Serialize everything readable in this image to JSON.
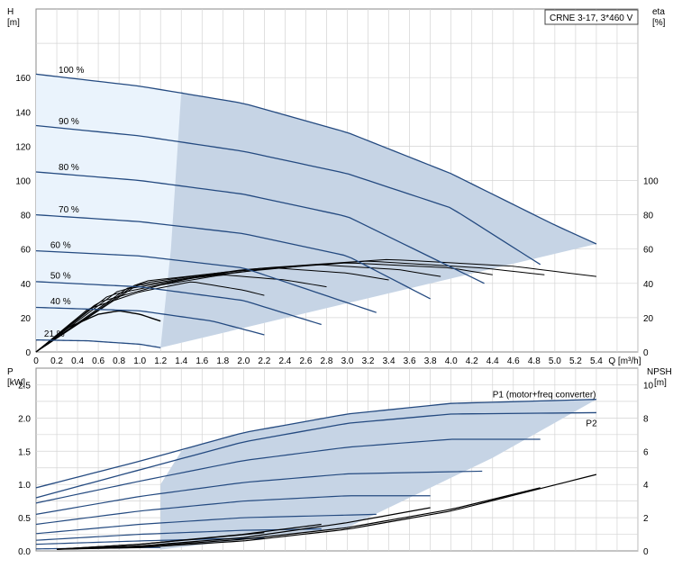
{
  "badge": "CRNE 3-17, 3*460 V",
  "colors": {
    "envelope": "#c6d4e5",
    "envelope_light": "#eaf3fc",
    "curve": "#244a80",
    "eff": "#000000",
    "grid": "#d4d4d4"
  },
  "chart_data": [
    {
      "id": "head",
      "type": "line",
      "ylabel_lines": [
        "H",
        "[m]"
      ],
      "y2label_lines": [
        "eta",
        "[%]"
      ],
      "xlabel": "Q [m³/h]",
      "xlim": [
        0,
        5.8
      ],
      "ylim": [
        0,
        200
      ],
      "y2lim": [
        0,
        200
      ],
      "xticks": [
        "0",
        "0.2",
        "0.4",
        "0.6",
        "0.8",
        "1.0",
        "1.2",
        "1.4",
        "1.6",
        "1.8",
        "2.0",
        "2.2",
        "2.4",
        "2.6",
        "2.8",
        "3.0",
        "3.2",
        "3.4",
        "3.6",
        "3.8",
        "4.0",
        "4.2",
        "4.4",
        "4.6",
        "4.8",
        "5.0",
        "5.2",
        "5.4"
      ],
      "yticks": [
        0,
        20,
        40,
        60,
        80,
        100,
        120,
        140,
        160
      ],
      "y2ticks": [
        0,
        20,
        40,
        60,
        80,
        100
      ],
      "grid": true,
      "speed_curves": [
        {
          "label": "100 %",
          "x": [
            0,
            1.0,
            2.0,
            3.0,
            4.0,
            5.0,
            5.4
          ],
          "y": [
            162,
            155,
            145,
            128,
            104,
            74,
            63
          ]
        },
        {
          "label": "90 %",
          "x": [
            0,
            1.0,
            2.0,
            3.0,
            4.0,
            4.86
          ],
          "y": [
            132,
            126,
            117,
            104,
            84,
            51
          ]
        },
        {
          "label": "80 %",
          "x": [
            0,
            1.0,
            2.0,
            3.0,
            4.32
          ],
          "y": [
            105,
            100,
            92,
            79,
            40
          ]
        },
        {
          "label": "70 %",
          "x": [
            0,
            1.0,
            2.0,
            3.0,
            3.8
          ],
          "y": [
            80,
            76,
            69,
            56,
            31
          ]
        },
        {
          "label": "60 %",
          "x": [
            0,
            1.0,
            2.0,
            3.28
          ],
          "y": [
            59,
            56,
            49,
            23
          ]
        },
        {
          "label": "50 %",
          "x": [
            0,
            1.0,
            2.0,
            2.75
          ],
          "y": [
            41,
            38,
            30,
            16
          ]
        },
        {
          "label": "40 %",
          "x": [
            0,
            1.0,
            1.7,
            2.2
          ],
          "y": [
            26,
            24,
            18,
            10
          ]
        },
        {
          "label": "21 %",
          "x": [
            0,
            0.5,
            1.0,
            1.2
          ],
          "y": [
            7,
            6.5,
            4.5,
            2.5
          ]
        }
      ],
      "efficiency_curves": [
        {
          "x": [
            0,
            0.3,
            0.6,
            0.8,
            1.0,
            1.2
          ],
          "y": [
            0,
            14,
            22,
            24,
            22,
            18
          ]
        },
        {
          "x": [
            0,
            0.5,
            1.0,
            1.5,
            2.0,
            2.2
          ],
          "y": [
            0,
            25,
            35,
            41,
            36,
            33
          ]
        },
        {
          "x": [
            0,
            0.6,
            1.2,
            1.8,
            2.4,
            2.8
          ],
          "y": [
            0,
            29,
            39,
            45,
            42,
            38
          ]
        },
        {
          "x": [
            0,
            0.7,
            1.5,
            2.3,
            3.0,
            3.4
          ],
          "y": [
            0,
            33,
            43,
            49,
            46,
            42
          ]
        },
        {
          "x": [
            0,
            0.8,
            1.7,
            2.7,
            3.5,
            3.9
          ],
          "y": [
            0,
            36,
            45,
            51,
            48,
            44
          ]
        },
        {
          "x": [
            0,
            0.9,
            1.9,
            3.0,
            4.0,
            4.4
          ],
          "y": [
            0,
            38,
            47,
            52,
            49,
            45
          ]
        },
        {
          "x": [
            0,
            1.0,
            2.0,
            3.2,
            4.3,
            4.9
          ],
          "y": [
            0,
            40,
            48,
            53,
            49,
            45
          ]
        },
        {
          "x": [
            0,
            1.0,
            2.2,
            3.4,
            4.6,
            5.4
          ],
          "y": [
            0,
            41,
            49,
            54,
            50,
            44
          ]
        }
      ]
    },
    {
      "id": "power",
      "type": "line",
      "ylabel_lines": [
        "P",
        "[kW]"
      ],
      "y2label_lines": [
        "NPSH",
        "[m]"
      ],
      "xlim": [
        0,
        5.8
      ],
      "ylim": [
        0,
        2.75
      ],
      "y2lim": [
        0,
        11
      ],
      "yticks": [
        "0.0",
        "0.5",
        "1.0",
        "1.5",
        "2.0",
        "2.5"
      ],
      "y2ticks": [
        0,
        2,
        4,
        6,
        8,
        10
      ],
      "grid": true,
      "series": [
        {
          "name": "P1 (motor+freq converter)",
          "x": [
            0,
            1.0,
            2.0,
            3.0,
            4.0,
            5.4
          ],
          "y": [
            0.95,
            1.35,
            1.78,
            2.06,
            2.22,
            2.28
          ]
        },
        {
          "name": "P2",
          "x": [
            0,
            1.0,
            2.0,
            3.0,
            4.0,
            5.4
          ],
          "y": [
            0.8,
            1.22,
            1.64,
            1.92,
            2.06,
            2.08
          ]
        }
      ],
      "power_curves": [
        {
          "x": [
            0,
            1.0,
            2.0,
            3.0,
            4.0,
            4.86
          ],
          "y": [
            0.72,
            1.05,
            1.36,
            1.56,
            1.68,
            1.68
          ]
        },
        {
          "x": [
            0,
            1.0,
            2.0,
            3.0,
            4.3
          ],
          "y": [
            0.55,
            0.82,
            1.03,
            1.16,
            1.2
          ]
        },
        {
          "x": [
            0,
            1.0,
            2.0,
            3.0,
            3.8
          ],
          "y": [
            0.4,
            0.6,
            0.75,
            0.83,
            0.83
          ]
        },
        {
          "x": [
            0,
            1.0,
            2.0,
            3.28
          ],
          "y": [
            0.26,
            0.4,
            0.5,
            0.55
          ]
        },
        {
          "x": [
            0,
            1.0,
            2.0,
            2.75
          ],
          "y": [
            0.16,
            0.25,
            0.31,
            0.33
          ]
        },
        {
          "x": [
            0,
            1.0,
            1.7,
            2.2
          ],
          "y": [
            0.1,
            0.15,
            0.18,
            0.19
          ]
        },
        {
          "x": [
            0,
            0.5,
            1.0,
            1.2
          ],
          "y": [
            0.03,
            0.04,
            0.05,
            0.05
          ]
        }
      ],
      "npsh_curves": [
        {
          "x": [
            0.2,
            1.0,
            2.0,
            3.0,
            4.0,
            4.86
          ],
          "y": [
            0.1,
            0.25,
            0.7,
            1.4,
            2.5,
            3.8
          ]
        },
        {
          "x": [
            0.2,
            1.0,
            2.0,
            3.0,
            4.0,
            5.4
          ],
          "y": [
            0.1,
            0.2,
            0.6,
            1.3,
            2.4,
            4.6
          ]
        },
        {
          "x": [
            0.2,
            1.0,
            2.0,
            3.0,
            3.8
          ],
          "y": [
            0.1,
            0.3,
            0.8,
            1.7,
            2.6
          ]
        },
        {
          "x": [
            0.2,
            1.0,
            2.0,
            2.75
          ],
          "y": [
            0.1,
            0.4,
            1.0,
            1.6
          ]
        },
        {
          "x": [
            0.2,
            1.0,
            1.7,
            2.2
          ],
          "y": [
            0.1,
            0.4,
            0.8,
            1.1
          ]
        }
      ]
    }
  ]
}
